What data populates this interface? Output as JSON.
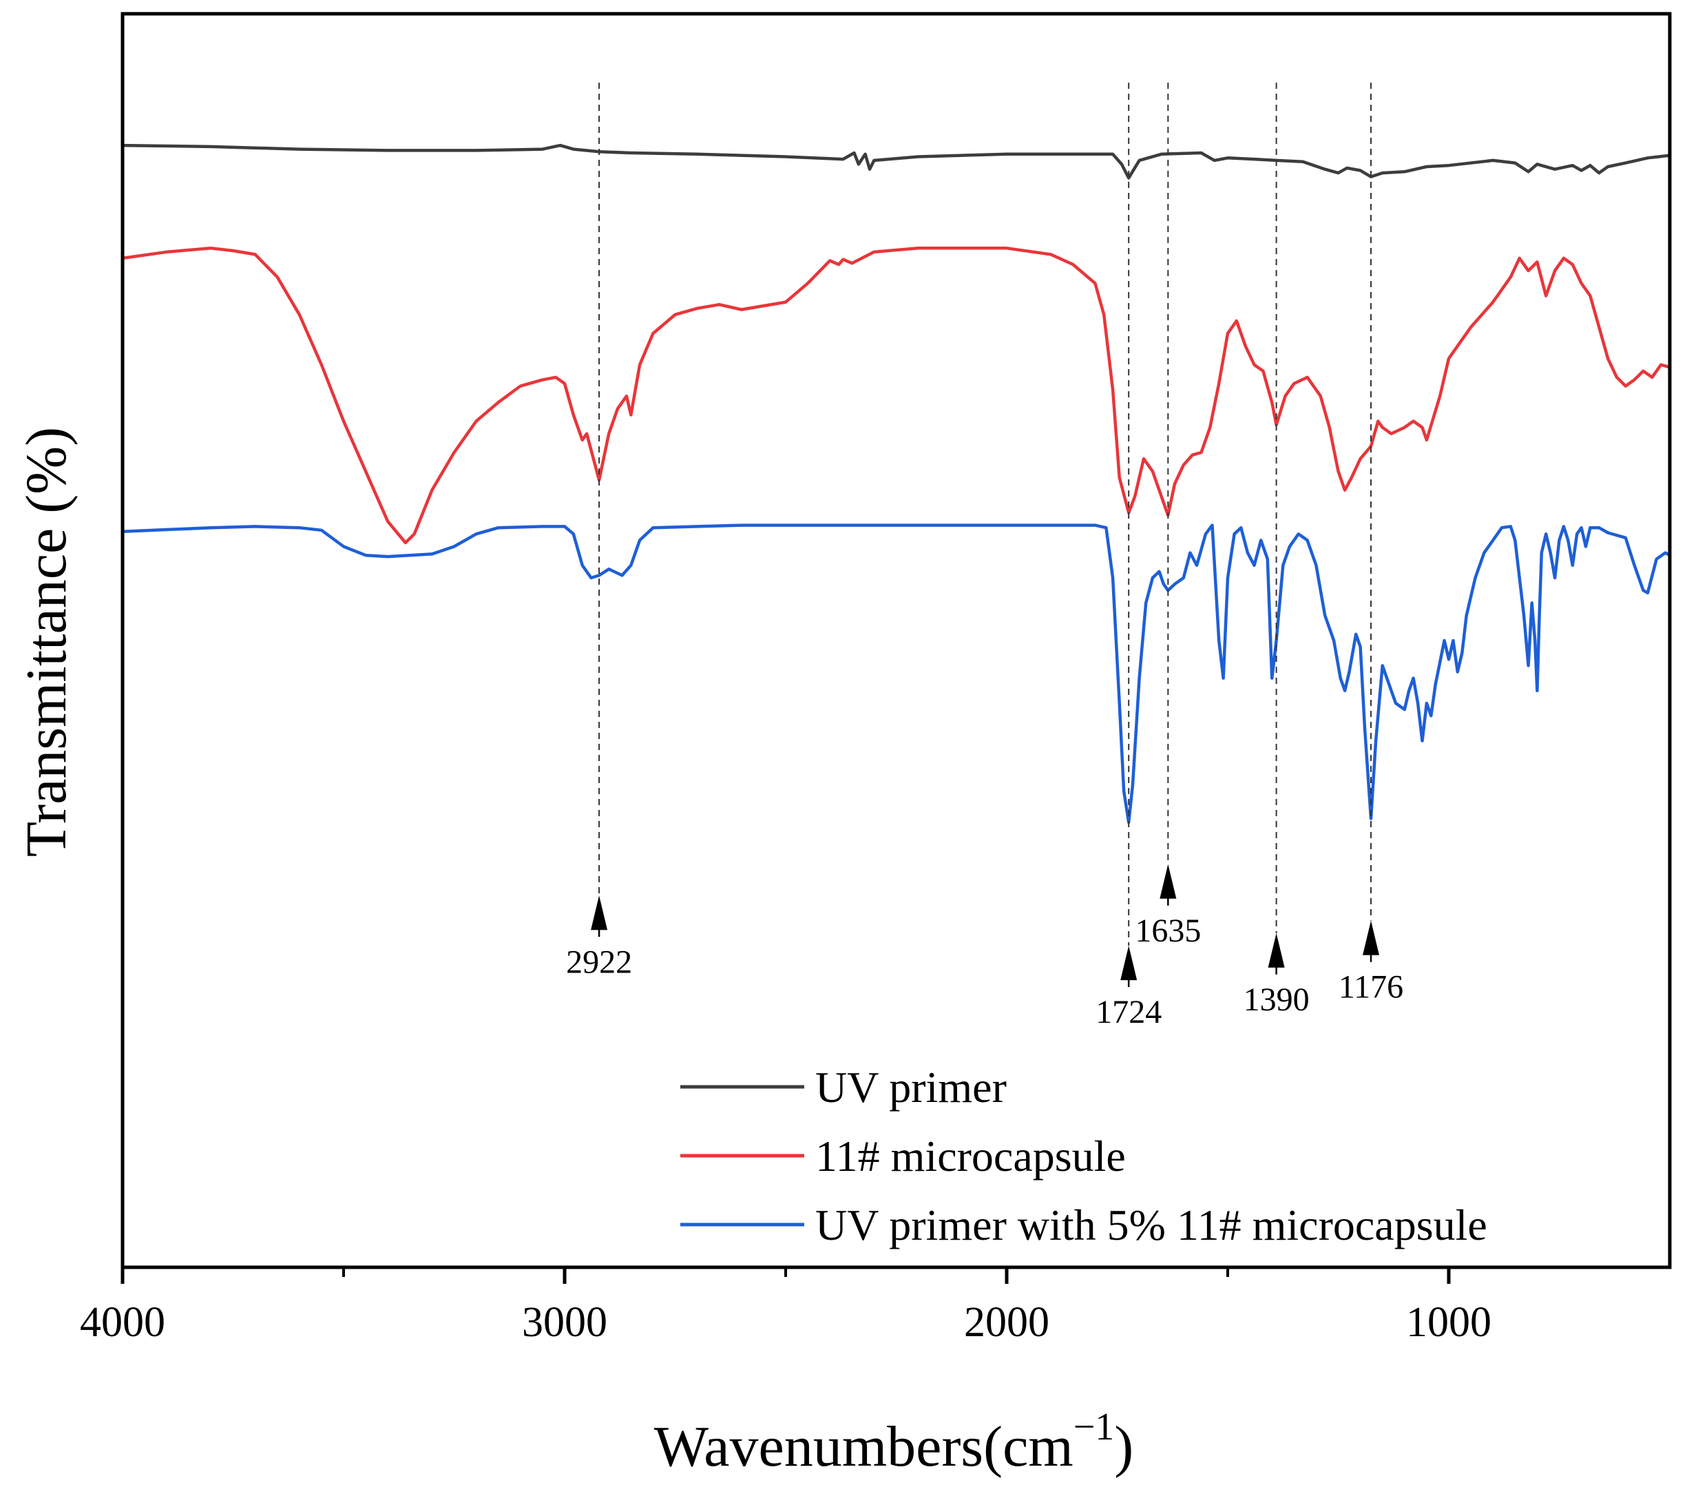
{
  "chart_data": {
    "type": "line",
    "title": "",
    "xlabel": "Wavenumbers(cm",
    "xlabel_sup": "−1",
    "xlabel_close": ")",
    "ylabel": "Transmittance (%)",
    "xlim": [
      4000,
      500
    ],
    "ylim": [
      0,
      100
    ],
    "x_ticks": [
      4000,
      3000,
      2000,
      1000
    ],
    "x_tick_labels": [
      "4000",
      "3000",
      "2000",
      "1000"
    ],
    "x_minor_ticks": [
      3500,
      2500,
      1500
    ],
    "legend_position": "bottom-right",
    "series": [
      {
        "name": "UV primer",
        "color": "#3d3d3d",
        "points": [
          [
            4000,
            89.5
          ],
          [
            3800,
            89.4
          ],
          [
            3600,
            89.2
          ],
          [
            3400,
            89.1
          ],
          [
            3200,
            89.1
          ],
          [
            3050,
            89.2
          ],
          [
            3010,
            89.5
          ],
          [
            2980,
            89.2
          ],
          [
            2922,
            89.0
          ],
          [
            2850,
            88.9
          ],
          [
            2700,
            88.8
          ],
          [
            2500,
            88.6
          ],
          [
            2370,
            88.4
          ],
          [
            2345,
            88.9
          ],
          [
            2335,
            88.0
          ],
          [
            2320,
            88.8
          ],
          [
            2310,
            87.6
          ],
          [
            2300,
            88.3
          ],
          [
            2200,
            88.6
          ],
          [
            2000,
            88.8
          ],
          [
            1800,
            88.8
          ],
          [
            1760,
            88.8
          ],
          [
            1740,
            88.0
          ],
          [
            1724,
            86.9
          ],
          [
            1700,
            88.3
          ],
          [
            1650,
            88.8
          ],
          [
            1560,
            88.9
          ],
          [
            1530,
            88.3
          ],
          [
            1500,
            88.5
          ],
          [
            1440,
            88.4
          ],
          [
            1390,
            88.3
          ],
          [
            1330,
            88.2
          ],
          [
            1280,
            87.6
          ],
          [
            1250,
            87.3
          ],
          [
            1230,
            87.7
          ],
          [
            1200,
            87.5
          ],
          [
            1176,
            87.0
          ],
          [
            1150,
            87.3
          ],
          [
            1100,
            87.4
          ],
          [
            1050,
            87.8
          ],
          [
            1000,
            87.9
          ],
          [
            900,
            88.3
          ],
          [
            850,
            88.1
          ],
          [
            820,
            87.4
          ],
          [
            800,
            88.0
          ],
          [
            760,
            87.6
          ],
          [
            720,
            87.9
          ],
          [
            700,
            87.5
          ],
          [
            680,
            87.9
          ],
          [
            660,
            87.3
          ],
          [
            640,
            87.8
          ],
          [
            600,
            88.1
          ],
          [
            550,
            88.5
          ],
          [
            500,
            88.7
          ]
        ]
      },
      {
        "name": "11# microcapsule",
        "color": "#e8363a",
        "points": [
          [
            4000,
            80.5
          ],
          [
            3900,
            81.0
          ],
          [
            3800,
            81.3
          ],
          [
            3750,
            81.1
          ],
          [
            3700,
            80.8
          ],
          [
            3650,
            79.0
          ],
          [
            3600,
            76.0
          ],
          [
            3550,
            72.0
          ],
          [
            3500,
            67.5
          ],
          [
            3450,
            63.5
          ],
          [
            3400,
            59.5
          ],
          [
            3360,
            57.8
          ],
          [
            3340,
            58.5
          ],
          [
            3300,
            62.0
          ],
          [
            3250,
            65.0
          ],
          [
            3200,
            67.5
          ],
          [
            3150,
            69.0
          ],
          [
            3100,
            70.3
          ],
          [
            3050,
            70.8
          ],
          [
            3020,
            71.0
          ],
          [
            3000,
            70.5
          ],
          [
            2980,
            68.0
          ],
          [
            2960,
            66.0
          ],
          [
            2950,
            66.5
          ],
          [
            2922,
            62.8
          ],
          [
            2900,
            66.5
          ],
          [
            2880,
            68.5
          ],
          [
            2860,
            69.5
          ],
          [
            2850,
            68.0
          ],
          [
            2830,
            72.0
          ],
          [
            2800,
            74.5
          ],
          [
            2750,
            76.0
          ],
          [
            2700,
            76.5
          ],
          [
            2650,
            76.8
          ],
          [
            2600,
            76.4
          ],
          [
            2500,
            77.0
          ],
          [
            2450,
            78.5
          ],
          [
            2400,
            80.3
          ],
          [
            2380,
            80.0
          ],
          [
            2370,
            80.4
          ],
          [
            2350,
            80.1
          ],
          [
            2300,
            81.0
          ],
          [
            2200,
            81.3
          ],
          [
            2000,
            81.3
          ],
          [
            1900,
            80.8
          ],
          [
            1850,
            80.0
          ],
          [
            1800,
            78.5
          ],
          [
            1780,
            76.0
          ],
          [
            1760,
            70.0
          ],
          [
            1745,
            63.0
          ],
          [
            1724,
            60.2
          ],
          [
            1710,
            61.5
          ],
          [
            1690,
            64.5
          ],
          [
            1670,
            63.5
          ],
          [
            1655,
            62.0
          ],
          [
            1635,
            60.0
          ],
          [
            1620,
            62.5
          ],
          [
            1600,
            64.0
          ],
          [
            1580,
            64.8
          ],
          [
            1560,
            65.0
          ],
          [
            1540,
            67.0
          ],
          [
            1520,
            70.5
          ],
          [
            1500,
            74.5
          ],
          [
            1480,
            75.5
          ],
          [
            1460,
            73.5
          ],
          [
            1440,
            72.0
          ],
          [
            1420,
            71.5
          ],
          [
            1400,
            69.0
          ],
          [
            1390,
            67.2
          ],
          [
            1370,
            69.5
          ],
          [
            1350,
            70.5
          ],
          [
            1320,
            71.0
          ],
          [
            1290,
            69.5
          ],
          [
            1270,
            67.0
          ],
          [
            1250,
            63.5
          ],
          [
            1235,
            62.0
          ],
          [
            1220,
            63.0
          ],
          [
            1200,
            64.5
          ],
          [
            1176,
            65.5
          ],
          [
            1160,
            67.5
          ],
          [
            1150,
            67.0
          ],
          [
            1130,
            66.5
          ],
          [
            1100,
            67.0
          ],
          [
            1080,
            67.5
          ],
          [
            1060,
            67.0
          ],
          [
            1050,
            66.0
          ],
          [
            1020,
            69.5
          ],
          [
            1000,
            72.5
          ],
          [
            950,
            75.0
          ],
          [
            900,
            77.0
          ],
          [
            860,
            79.0
          ],
          [
            840,
            80.5
          ],
          [
            820,
            79.5
          ],
          [
            800,
            80.2
          ],
          [
            780,
            77.5
          ],
          [
            760,
            79.5
          ],
          [
            740,
            80.5
          ],
          [
            720,
            80.0
          ],
          [
            700,
            78.5
          ],
          [
            680,
            77.5
          ],
          [
            660,
            75.0
          ],
          [
            640,
            72.5
          ],
          [
            620,
            71.0
          ],
          [
            600,
            70.3
          ],
          [
            580,
            70.8
          ],
          [
            560,
            71.5
          ],
          [
            540,
            71.0
          ],
          [
            520,
            72.0
          ],
          [
            500,
            71.8
          ]
        ]
      },
      {
        "name": "UV primer with 5% 11# microcapsule",
        "color": "#1e5fd6",
        "points": [
          [
            4000,
            58.7
          ],
          [
            3800,
            59.0
          ],
          [
            3700,
            59.1
          ],
          [
            3600,
            59.0
          ],
          [
            3550,
            58.8
          ],
          [
            3500,
            57.5
          ],
          [
            3450,
            56.8
          ],
          [
            3400,
            56.7
          ],
          [
            3300,
            56.9
          ],
          [
            3250,
            57.5
          ],
          [
            3200,
            58.5
          ],
          [
            3150,
            59.0
          ],
          [
            3050,
            59.1
          ],
          [
            3000,
            59.1
          ],
          [
            2980,
            58.5
          ],
          [
            2960,
            56.0
          ],
          [
            2940,
            55.0
          ],
          [
            2922,
            55.2
          ],
          [
            2900,
            55.7
          ],
          [
            2870,
            55.2
          ],
          [
            2850,
            56.0
          ],
          [
            2830,
            58.0
          ],
          [
            2800,
            59.0
          ],
          [
            2600,
            59.2
          ],
          [
            2400,
            59.2
          ],
          [
            2200,
            59.2
          ],
          [
            2000,
            59.2
          ],
          [
            1800,
            59.2
          ],
          [
            1775,
            59.0
          ],
          [
            1760,
            55.0
          ],
          [
            1745,
            45.0
          ],
          [
            1735,
            38.0
          ],
          [
            1724,
            35.5
          ],
          [
            1715,
            38.5
          ],
          [
            1700,
            47.0
          ],
          [
            1685,
            53.0
          ],
          [
            1670,
            55.0
          ],
          [
            1655,
            55.5
          ],
          [
            1645,
            54.5
          ],
          [
            1635,
            54.0
          ],
          [
            1620,
            54.5
          ],
          [
            1600,
            55.0
          ],
          [
            1585,
            57.0
          ],
          [
            1570,
            56.0
          ],
          [
            1550,
            58.5
          ],
          [
            1535,
            59.2
          ],
          [
            1520,
            50.0
          ],
          [
            1510,
            47.0
          ],
          [
            1500,
            55.0
          ],
          [
            1485,
            58.5
          ],
          [
            1470,
            59.0
          ],
          [
            1455,
            57.0
          ],
          [
            1440,
            56.0
          ],
          [
            1425,
            58.0
          ],
          [
            1410,
            56.5
          ],
          [
            1400,
            47.0
          ],
          [
            1390,
            50.0
          ],
          [
            1375,
            56.0
          ],
          [
            1360,
            57.5
          ],
          [
            1340,
            58.5
          ],
          [
            1320,
            58.0
          ],
          [
            1300,
            56.0
          ],
          [
            1280,
            52.0
          ],
          [
            1260,
            50.0
          ],
          [
            1245,
            47.0
          ],
          [
            1235,
            46.0
          ],
          [
            1225,
            47.5
          ],
          [
            1210,
            50.5
          ],
          [
            1200,
            49.5
          ],
          [
            1190,
            43.0
          ],
          [
            1176,
            35.8
          ],
          [
            1165,
            42.0
          ],
          [
            1150,
            48.0
          ],
          [
            1140,
            47.0
          ],
          [
            1120,
            45.0
          ],
          [
            1100,
            44.5
          ],
          [
            1090,
            46.0
          ],
          [
            1080,
            47.0
          ],
          [
            1070,
            45.0
          ],
          [
            1060,
            42.0
          ],
          [
            1050,
            45.0
          ],
          [
            1040,
            44.0
          ],
          [
            1030,
            46.5
          ],
          [
            1010,
            50.0
          ],
          [
            1000,
            48.5
          ],
          [
            990,
            50.0
          ],
          [
            980,
            47.5
          ],
          [
            970,
            49.0
          ],
          [
            960,
            52.0
          ],
          [
            940,
            55.0
          ],
          [
            920,
            57.0
          ],
          [
            900,
            58.0
          ],
          [
            880,
            59.0
          ],
          [
            860,
            59.1
          ],
          [
            850,
            58.0
          ],
          [
            840,
            55.0
          ],
          [
            830,
            52.0
          ],
          [
            820,
            48.0
          ],
          [
            812,
            53.0
          ],
          [
            805,
            50.0
          ],
          [
            800,
            46.0
          ],
          [
            795,
            52.0
          ],
          [
            790,
            57.0
          ],
          [
            780,
            58.5
          ],
          [
            770,
            57.0
          ],
          [
            760,
            55.0
          ],
          [
            750,
            58.0
          ],
          [
            740,
            59.1
          ],
          [
            730,
            58.0
          ],
          [
            720,
            56.0
          ],
          [
            710,
            58.5
          ],
          [
            700,
            59.0
          ],
          [
            690,
            57.5
          ],
          [
            680,
            59.0
          ],
          [
            660,
            59.0
          ],
          [
            640,
            58.6
          ],
          [
            600,
            58.2
          ],
          [
            580,
            56.0
          ],
          [
            560,
            54.0
          ],
          [
            550,
            53.8
          ],
          [
            530,
            56.5
          ],
          [
            510,
            57.0
          ],
          [
            500,
            56.8
          ]
        ]
      }
    ],
    "annotations": [
      {
        "label": "2922",
        "x": 2922,
        "label_level": 23.5
      },
      {
        "label": "1724",
        "x": 1724,
        "label_level": 19.5
      },
      {
        "label": "1635",
        "x": 1635,
        "label_level": 26.0
      },
      {
        "label": "1390",
        "x": 1390,
        "label_level": 20.5
      },
      {
        "label": "1176",
        "x": 1176,
        "label_level": 21.5
      }
    ]
  }
}
